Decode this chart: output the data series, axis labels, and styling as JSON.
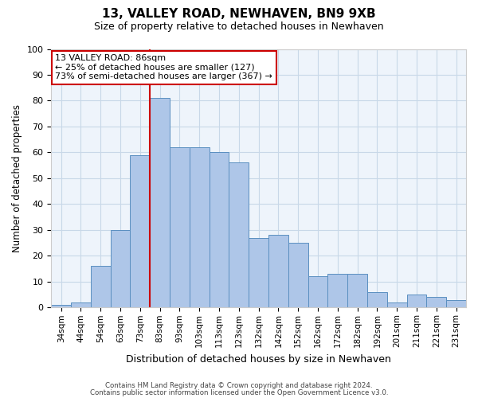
{
  "title": "13, VALLEY ROAD, NEWHAVEN, BN9 9XB",
  "subtitle": "Size of property relative to detached houses in Newhaven",
  "xlabel": "Distribution of detached houses by size in Newhaven",
  "ylabel": "Number of detached properties",
  "bar_labels": [
    "34sqm",
    "44sqm",
    "54sqm",
    "63sqm",
    "73sqm",
    "83sqm",
    "93sqm",
    "103sqm",
    "113sqm",
    "123sqm",
    "132sqm",
    "142sqm",
    "152sqm",
    "162sqm",
    "172sqm",
    "182sqm",
    "192sqm",
    "201sqm",
    "211sqm",
    "221sqm",
    "231sqm"
  ],
  "bar_values": [
    1,
    2,
    16,
    30,
    59,
    81,
    62,
    62,
    60,
    56,
    27,
    28,
    25,
    12,
    13,
    13,
    6,
    2,
    5,
    4,
    3
  ],
  "bar_color": "#aec6e8",
  "bar_edge_color": "#5a8fc0",
  "grid_color": "#c8d8e8",
  "bg_color": "#eef4fb",
  "marker_line_color": "#cc0000",
  "annotation_text_line1": "13 VALLEY ROAD: 86sqm",
  "annotation_text_line2": "← 25% of detached houses are smaller (127)",
  "annotation_text_line3": "73% of semi-detached houses are larger (367) →",
  "annotation_box_color": "#ffffff",
  "annotation_box_edge": "#cc0000",
  "ylim": [
    0,
    100
  ],
  "footer1": "Contains HM Land Registry data © Crown copyright and database right 2024.",
  "footer2": "Contains public sector information licensed under the Open Government Licence v3.0."
}
